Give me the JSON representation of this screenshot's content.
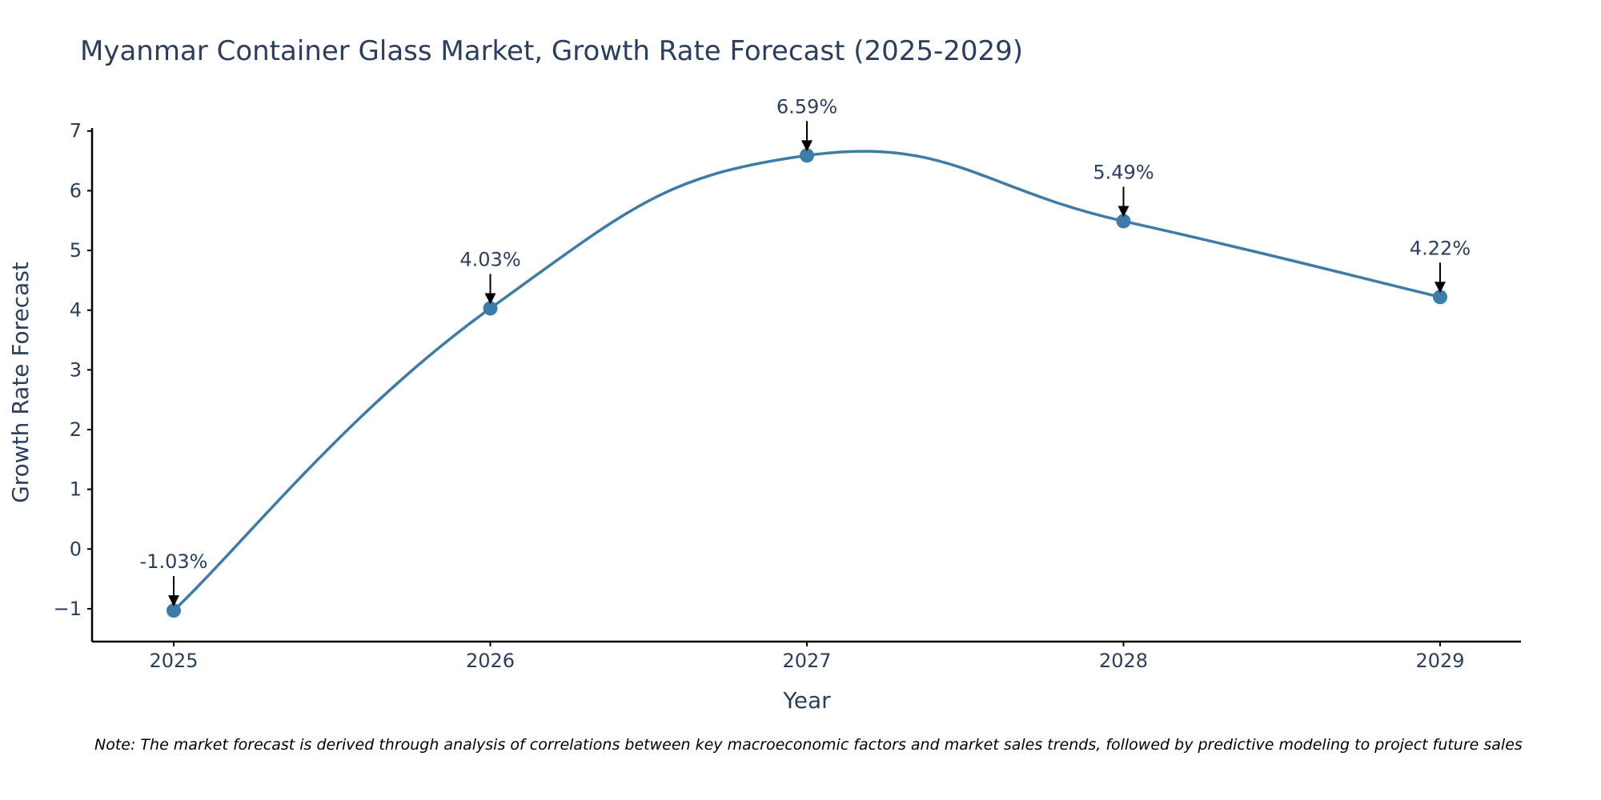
{
  "chart_data": {
    "type": "line",
    "title": "Myanmar Container Glass Market, Growth Rate Forecast (2025-2029)",
    "xlabel": "Year",
    "ylabel": "Growth Rate Forecast",
    "categories": [
      "2025",
      "2026",
      "2027",
      "2028",
      "2029"
    ],
    "series": [
      {
        "name": "Growth Rate Forecast",
        "values": [
          -1.03,
          4.03,
          6.59,
          5.49,
          4.22
        ],
        "labels": [
          "-1.03%",
          "4.03%",
          "6.59%",
          "5.49%",
          "4.22%"
        ],
        "color": "#3d7ca8"
      }
    ],
    "y_ticks": [
      -1,
      0,
      1,
      2,
      3,
      4,
      5,
      6,
      7
    ],
    "y_tick_labels": [
      "−1",
      "0",
      "1",
      "2",
      "3",
      "4",
      "5",
      "6",
      "7"
    ],
    "ylim": [
      -1.55,
      7.05
    ],
    "grid": false,
    "line_shape": "spline"
  },
  "footnote": "Note: The market forecast is derived through analysis of correlations between key macroeconomic factors and market sales trends, followed by predictive modeling to project future sales"
}
